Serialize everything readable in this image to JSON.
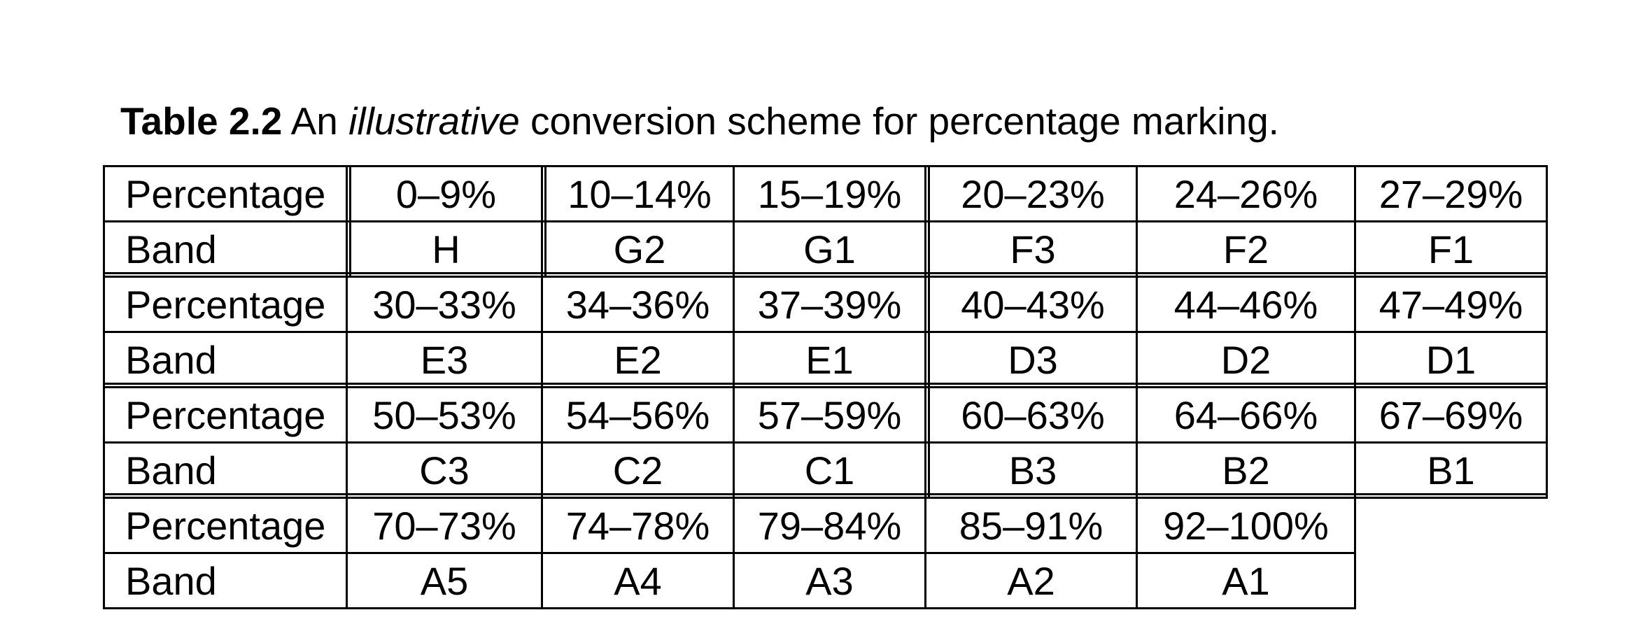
{
  "caption": {
    "label": "Table 2.2",
    "text_before": "An",
    "emphasis": "illustrative",
    "text_after": "conversion scheme for percentage marking."
  },
  "table": {
    "row_labels": {
      "percentage": "Percentage",
      "band": "Band"
    },
    "blocks": [
      {
        "percentages": [
          "0–9%",
          "10–14%",
          "15–19%",
          "20–23%",
          "24–26%",
          "27–29%"
        ],
        "bands": [
          "H",
          "G2",
          "G1",
          "F3",
          "F2",
          "F1"
        ]
      },
      {
        "percentages": [
          "30–33%",
          "34–36%",
          "37–39%",
          "40–43%",
          "44–46%",
          "47–49%"
        ],
        "bands": [
          "E3",
          "E2",
          "E1",
          "D3",
          "D2",
          "D1"
        ]
      },
      {
        "percentages": [
          "50–53%",
          "54–56%",
          "57–59%",
          "60–63%",
          "64–66%",
          "67–69%"
        ],
        "bands": [
          "C3",
          "C2",
          "C1",
          "B3",
          "B2",
          "B1"
        ]
      },
      {
        "percentages": [
          "70–73%",
          "74–78%",
          "79–84%",
          "85–91%",
          "92–100%"
        ],
        "bands": [
          "A5",
          "A4",
          "A3",
          "A2",
          "A1"
        ]
      }
    ]
  }
}
